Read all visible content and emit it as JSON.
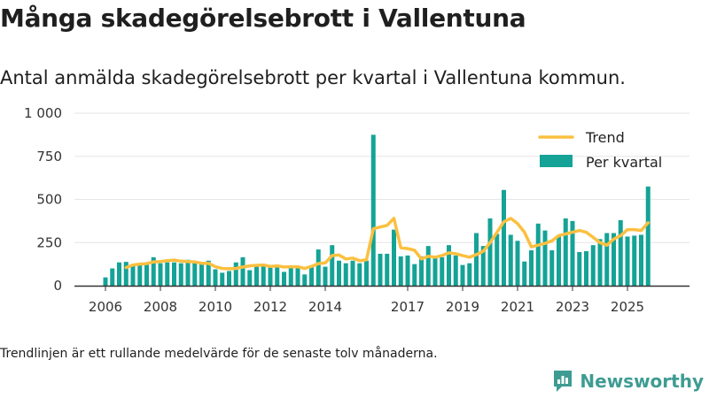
{
  "title": "Många skadegörelsebrott i Vallentuna",
  "subtitle": "Antal anmälda skadegörelsebrott per kvartal i Vallentuna kommun.",
  "footnote": "Trendlinjen är ett rullande medelvärde för de senaste tolv månaderna.",
  "brand": {
    "name": "Newsworthy"
  },
  "colors": {
    "bar": "#14a396",
    "trend": "#fbc040",
    "axis": "#333333",
    "grid": "#e6e6e6"
  },
  "chart_data": {
    "type": "bar",
    "title": "Antal anmälda skadegörelsebrott per kvartal i Vallentuna kommun.",
    "xlabel": "",
    "ylabel": "",
    "ylim": [
      0,
      1000
    ],
    "yticks": [
      0,
      250,
      500,
      750,
      1000
    ],
    "ytick_labels": [
      "0",
      "250",
      "500",
      "750",
      "1 000"
    ],
    "x_start": 2006,
    "quarters_per_year": 4,
    "xticks": [
      2006,
      2008,
      2010,
      2012,
      2014,
      2017,
      2019,
      2021,
      2023,
      2025
    ],
    "xtick_labels": [
      "2006",
      "2008",
      "2010",
      "2012",
      "2014",
      "2017",
      "2019",
      "2021",
      "2023",
      "2025"
    ],
    "grid": true,
    "legend_position": "top-right",
    "series": [
      {
        "name": "Per kvartal",
        "type": "bar",
        "values": [
          48,
          100,
          135,
          138,
          118,
          125,
          125,
          165,
          130,
          135,
          135,
          130,
          150,
          135,
          125,
          145,
          95,
          75,
          85,
          135,
          165,
          90,
          120,
          115,
          105,
          120,
          80,
          105,
          115,
          65,
          115,
          210,
          110,
          235,
          145,
          130,
          145,
          130,
          145,
          875,
          185,
          185,
          325,
          170,
          175,
          125,
          170,
          230,
          165,
          165,
          235,
          175,
          120,
          130,
          305,
          230,
          390,
          300,
          555,
          295,
          260,
          140,
          205,
          360,
          320,
          205,
          290,
          390,
          375,
          195,
          200,
          235,
          270,
          305,
          305,
          380,
          285,
          290,
          295,
          575
        ]
      },
      {
        "name": "Trend",
        "type": "line",
        "values": [
          null,
          null,
          null,
          105,
          120,
          125,
          128,
          138,
          140,
          145,
          148,
          142,
          140,
          138,
          130,
          130,
          110,
          100,
          98,
          100,
          108,
          115,
          118,
          120,
          112,
          115,
          108,
          110,
          110,
          100,
          112,
          128,
          132,
          175,
          178,
          155,
          160,
          145,
          150,
          330,
          340,
          350,
          390,
          220,
          215,
          205,
          155,
          170,
          165,
          175,
          190,
          185,
          175,
          165,
          180,
          200,
          250,
          310,
          370,
          390,
          360,
          310,
          225,
          235,
          245,
          260,
          290,
          300,
          310,
          320,
          310,
          280,
          250,
          235,
          270,
          290,
          325,
          325,
          320,
          365
        ]
      }
    ]
  }
}
